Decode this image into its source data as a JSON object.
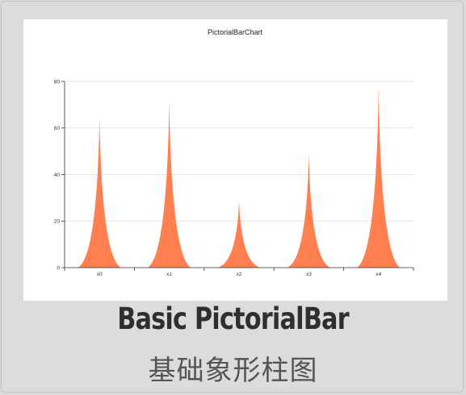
{
  "caption": {
    "title_en": "Basic PictorialBar",
    "title_zh": "基础象形柱图"
  },
  "colors": {
    "bar": "#ff7f50",
    "grid": "#e6e6e6",
    "axis": "#333333"
  },
  "chart_data": {
    "type": "bar",
    "title": "PictorialBarChart",
    "categories": [
      "x0",
      "x1",
      "x2",
      "x3",
      "x4"
    ],
    "values": [
      65,
      72,
      29,
      49,
      78
    ],
    "ylim": [
      0,
      80
    ],
    "yticks": [
      0,
      20,
      40,
      60,
      80
    ],
    "grid": true,
    "bar_shape": "spike"
  }
}
